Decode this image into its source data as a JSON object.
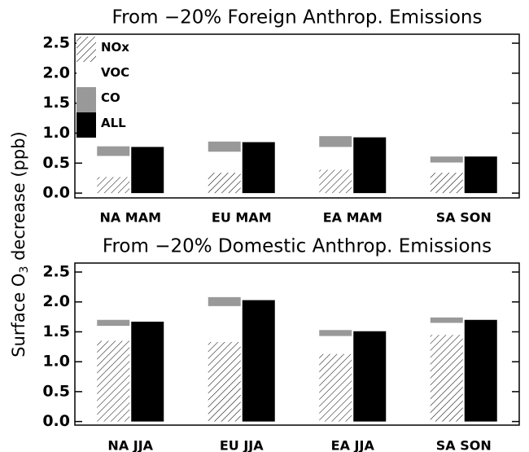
{
  "ylabel": {
    "text": "Surface O",
    "subscript": "3",
    "rest": " decrease (ppb)"
  },
  "chart_data": [
    {
      "type": "bar",
      "title": "From −20% Foreign Anthrop. Emissions",
      "categories": [
        "NA  MAM",
        "EU  MAM",
        "EA  MAM",
        "SA  SON"
      ],
      "series": [
        {
          "name": "NOx",
          "color": "#ffffff",
          "hatch": true,
          "stack": "parts",
          "values": [
            0.27,
            0.34,
            0.39,
            0.34
          ]
        },
        {
          "name": "VOC",
          "color": "#ffffff",
          "stack": "parts",
          "values": [
            0.35,
            0.35,
            0.38,
            0.17
          ]
        },
        {
          "name": "CO",
          "color": "#999999",
          "stack": "parts",
          "values": [
            0.16,
            0.17,
            0.18,
            0.1
          ]
        },
        {
          "name": "ALL",
          "color": "#000000",
          "stack": "total",
          "values": [
            0.77,
            0.85,
            0.93,
            0.61
          ]
        }
      ],
      "ylim": [
        -0.08,
        2.65
      ],
      "yticks": [
        {
          "value": 0,
          "label": "0.0"
        },
        0.5,
        {
          "value": 1,
          "label": "1.0"
        },
        1.5,
        {
          "value": 2,
          "label": "2.0"
        },
        2.5
      ],
      "legend": "upper left"
    },
    {
      "type": "bar",
      "title": "From −20% Domestic Anthrop. Emissions",
      "categories": [
        "NA  JJA",
        "EU  JJA",
        "EA  JJA",
        "SA  SON"
      ],
      "series": [
        {
          "color": "#ffffff",
          "hatch": true,
          "stack": "parts",
          "values": [
            1.35,
            1.33,
            1.13,
            1.45
          ]
        },
        {
          "color": "#ffffff",
          "stack": "parts",
          "values": [
            0.25,
            0.6,
            0.3,
            0.2
          ]
        },
        {
          "color": "#999999",
          "stack": "parts",
          "values": [
            0.1,
            0.15,
            0.1,
            0.09
          ]
        },
        {
          "color": "#000000",
          "stack": "total",
          "values": [
            1.67,
            2.03,
            1.51,
            1.7
          ]
        }
      ],
      "ylim": [
        -0.06,
        2.65
      ],
      "yticks": [
        {
          "value": 0,
          "label": "0.0"
        },
        0.5,
        {
          "value": 1,
          "label": "1.0"
        },
        1.5,
        {
          "value": 2,
          "label": "2.0"
        },
        2.5
      ]
    }
  ]
}
